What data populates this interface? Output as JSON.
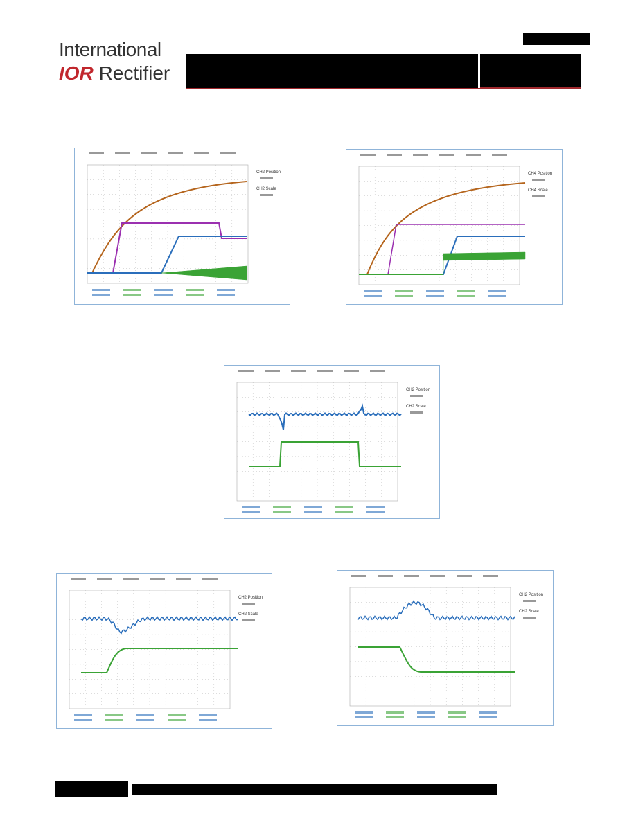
{
  "header": {
    "logo_top": "International",
    "logo_mark": "IOR",
    "logo_bottom": "Rectifier"
  },
  "scopes": [
    {
      "labels": [
        "CH2 Position",
        "CH2 Scale"
      ]
    },
    {
      "labels": [
        "CH4 Position",
        "CH4 Scale"
      ]
    },
    {
      "labels": [
        "CH2 Position",
        "CH2 Scale"
      ]
    },
    {
      "labels": [
        "CH2 Position",
        "CH2 Scale"
      ]
    },
    {
      "labels": [
        "CH2 Position",
        "CH2 Scale"
      ]
    }
  ]
}
